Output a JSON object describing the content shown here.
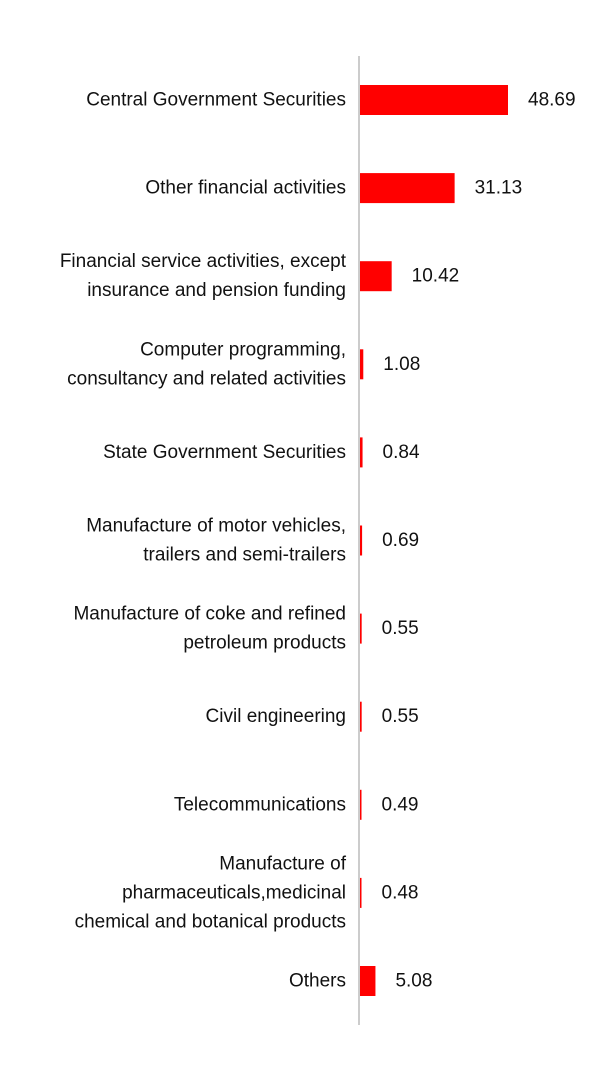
{
  "chart_data": {
    "type": "bar",
    "orientation": "horizontal",
    "categories": [
      [
        "Central Government Securities"
      ],
      [
        "Other financial activities"
      ],
      [
        "Financial service activities, except",
        "insurance and pension funding"
      ],
      [
        "Computer programming,",
        "consultancy and related activities"
      ],
      [
        "State Government Securities"
      ],
      [
        "Manufacture of motor vehicles,",
        "trailers and semi-trailers"
      ],
      [
        "Manufacture of coke and refined",
        "petroleum products"
      ],
      [
        "Civil engineering"
      ],
      [
        "Telecommunications"
      ],
      [
        "Manufacture of",
        "pharmaceuticals,medicinal",
        "chemical and botanical products"
      ],
      [
        "Others"
      ]
    ],
    "values": [
      48.69,
      31.13,
      10.42,
      1.08,
      0.84,
      0.69,
      0.55,
      0.55,
      0.49,
      0.48,
      5.08
    ],
    "value_labels": [
      "48.69",
      "31.13",
      "10.42",
      "1.08",
      "0.84",
      "0.69",
      "0.55",
      "0.55",
      "0.49",
      "0.48",
      "5.08"
    ],
    "xlim": [
      0,
      48.69
    ],
    "grid": false,
    "legend": "none",
    "bar_color": "#ff0000",
    "axis_color": "#cccccc"
  }
}
